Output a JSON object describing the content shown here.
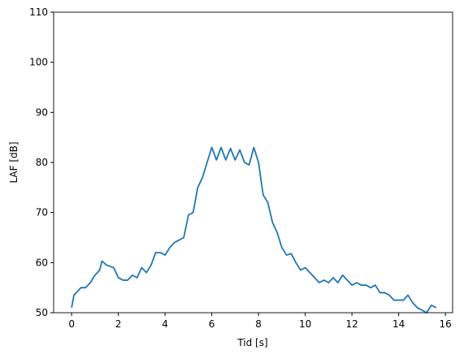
{
  "chart_data": {
    "type": "line",
    "xlabel": "Tid [s]",
    "ylabel": "LAF [dB]",
    "x": [
      0,
      0.1,
      0.2,
      0.4,
      0.6,
      0.8,
      1.0,
      1.2,
      1.3,
      1.5,
      1.8,
      2.0,
      2.2,
      2.4,
      2.6,
      2.8,
      3.0,
      3.2,
      3.4,
      3.6,
      3.8,
      4.0,
      4.2,
      4.4,
      4.6,
      4.8,
      5.0,
      5.2,
      5.4,
      5.6,
      5.8,
      6.0,
      6.2,
      6.4,
      6.6,
      6.8,
      7.0,
      7.2,
      7.4,
      7.6,
      7.8,
      8.0,
      8.2,
      8.4,
      8.6,
      8.8,
      9.0,
      9.2,
      9.4,
      9.6,
      9.8,
      10.0,
      10.2,
      10.4,
      10.6,
      10.8,
      11.0,
      11.2,
      11.4,
      11.6,
      11.8,
      12.0,
      12.2,
      12.4,
      12.6,
      12.8,
      13.0,
      13.2,
      13.4,
      13.6,
      13.8,
      14.0,
      14.2,
      14.4,
      14.6,
      14.8,
      15.0,
      15.2,
      15.4,
      15.6
    ],
    "series": [
      {
        "name": "LAF",
        "color": "#1f77b4",
        "values": [
          51,
          53.5,
          54,
          55,
          55,
          56,
          57.5,
          58.5,
          60.3,
          59.5,
          59,
          57,
          56.5,
          56.5,
          57.5,
          57,
          59,
          58,
          59.5,
          62,
          62,
          61.5,
          63,
          64,
          64.5,
          65,
          69.5,
          70,
          75,
          77,
          80,
          83,
          80.5,
          83,
          80.5,
          82.8,
          80.5,
          82.5,
          80,
          79.5,
          83,
          80,
          73.5,
          72,
          68,
          66,
          63,
          61.5,
          61.8,
          60,
          58.5,
          59,
          58,
          57,
          56,
          56.5,
          56,
          57,
          56,
          57.5,
          56.5,
          55.5,
          56,
          55.5,
          55.5,
          55,
          55.5,
          54,
          54,
          53.5,
          52.5,
          52.5,
          52.5,
          53.5,
          52,
          51,
          50.5,
          50,
          51.5,
          51
        ]
      }
    ],
    "xlim": [
      -0.77,
      16.31
    ],
    "ylim": [
      50,
      110
    ],
    "xticks": [
      0,
      2,
      4,
      6,
      8,
      10,
      12,
      14,
      16
    ],
    "yticks": [
      50,
      60,
      70,
      80,
      90,
      100,
      110
    ]
  }
}
